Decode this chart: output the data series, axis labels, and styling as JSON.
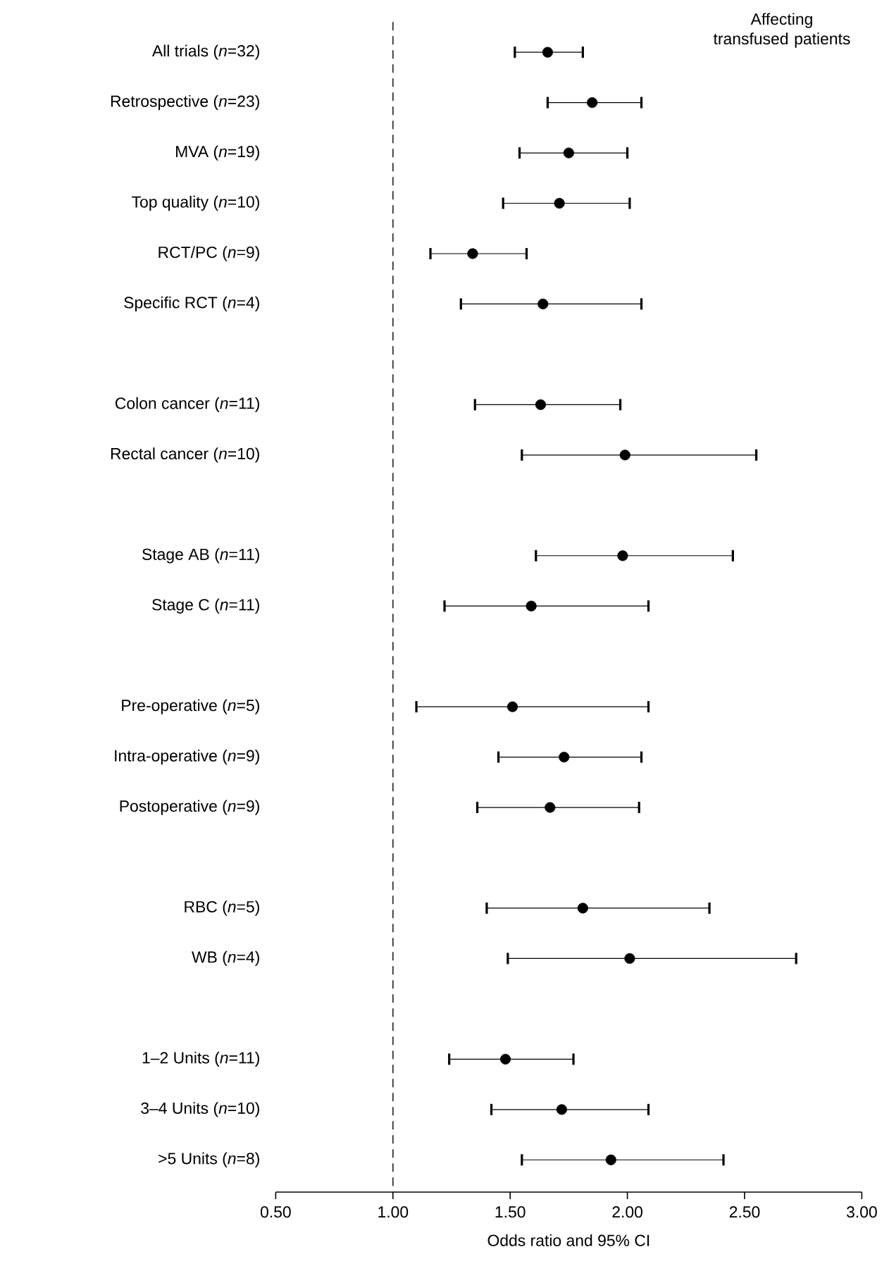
{
  "chart_data": {
    "type": "scatter",
    "orientation": "horizontal",
    "marker": "circle",
    "color": "#000000",
    "annotations": [
      "Affecting transfused patients"
    ],
    "xlabel": "Odds ratio and 95% CI",
    "categories": [
      "All trials (*n*=32)",
      "Retrospective (*n*=23)",
      "MVA (*n*=19)",
      "Top quality (*n*=10)",
      "RCT/PC (*n*=9)",
      "Specific RCT (*n*=4)",
      null,
      "Colon cancer (*n*=11)",
      "Rectal cancer (*n*=10)",
      null,
      "Stage AB (*n*=11)",
      "Stage C (*n*=11)",
      null,
      "Pre-operative (*n*=5)",
      "Intra-operative (*n*=9)",
      "Postoperative (*n*=9)",
      null,
      "RBC (*n*=5)",
      "WB (*n*=4)",
      null,
      "1–2 Units (*n*=11)",
      "3–4 Units (*n*=10)",
      ">5 Units (*n*=8)"
    ],
    "values": [
      1.66,
      1.85,
      1.75,
      1.71,
      1.34,
      1.64,
      null,
      1.63,
      1.99,
      null,
      1.98,
      1.59,
      null,
      1.51,
      1.73,
      1.67,
      null,
      1.81,
      2.01,
      null,
      1.48,
      1.72,
      1.93
    ],
    "errors": [
      [
        1.52,
        1.81
      ],
      [
        1.66,
        2.06
      ],
      [
        1.54,
        2.0
      ],
      [
        1.47,
        2.01
      ],
      [
        1.16,
        1.57
      ],
      [
        1.29,
        2.06
      ],
      null,
      [
        1.35,
        1.97
      ],
      [
        1.55,
        2.55
      ],
      null,
      [
        1.61,
        2.45
      ],
      [
        1.22,
        2.09
      ],
      null,
      [
        1.1,
        2.09
      ],
      [
        1.45,
        2.06
      ],
      [
        1.36,
        2.05
      ],
      null,
      [
        1.4,
        2.35
      ],
      [
        1.49,
        2.72
      ],
      null,
      [
        1.24,
        1.77
      ],
      [
        1.42,
        2.09
      ],
      [
        1.55,
        2.41
      ]
    ],
    "xlim": [
      0.5,
      3.0
    ],
    "xticks": [
      {
        "value": 0.5,
        "label": "0.50"
      },
      {
        "value": 1.0,
        "label": "1.00"
      },
      {
        "value": 1.5,
        "label": "1.50"
      },
      {
        "value": 2.0,
        "label": "2.00"
      },
      {
        "value": 2.5,
        "label": "2.50"
      },
      {
        "value": 3.0,
        "label": "3.00"
      }
    ],
    "ref_lines": [
      {
        "axis": "x",
        "value": 1.0,
        "line_style": "dashed",
        "color": "#333333"
      }
    ]
  }
}
